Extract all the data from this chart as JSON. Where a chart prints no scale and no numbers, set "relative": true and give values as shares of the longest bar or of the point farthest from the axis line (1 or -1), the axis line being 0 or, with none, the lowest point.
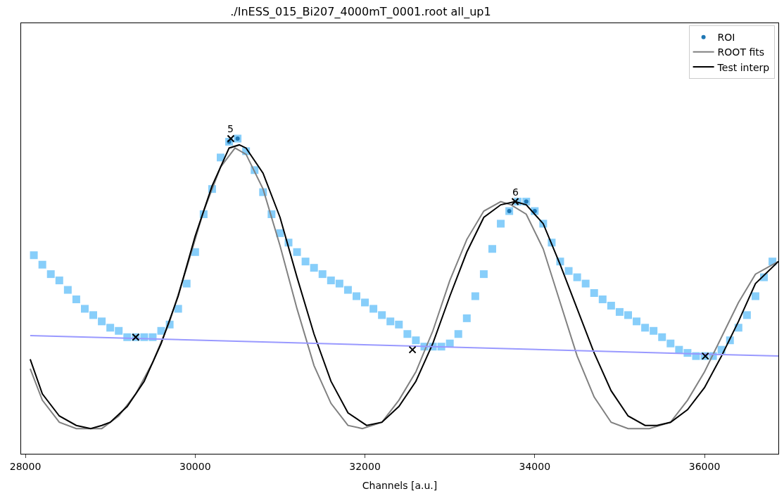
{
  "chart_data": {
    "type": "scatter",
    "title": "./InESS_015_Bi207_4000mT_0001.root all_up1",
    "xlabel": "Channels [a.u.]",
    "relative": true,
    "xlim": [
      27950,
      36870
    ],
    "xticks": [
      28000,
      30000,
      32000,
      34000,
      36000
    ],
    "legend": "top right",
    "tick_labels": "x",
    "series": [
      {
        "marker": "square",
        "color": "#87cefa",
        "x": [
          28100,
          28200,
          28300,
          28400,
          28500,
          28600,
          28700,
          28800,
          28900,
          29000,
          29100,
          29200,
          29300,
          29400,
          29500,
          29600,
          29700,
          29800,
          29900,
          30000,
          30100,
          30200,
          30300,
          30400,
          30500,
          30600,
          30700,
          30800,
          30900,
          31000,
          31100,
          31200,
          31300,
          31400,
          31500,
          31600,
          31700,
          31800,
          31900,
          32000,
          32100,
          32200,
          32300,
          32400,
          32500,
          32600,
          32700,
          32800,
          32900,
          33000,
          33100,
          33200,
          33300,
          33400,
          33500,
          33600,
          33700,
          33800,
          33900,
          34000,
          34100,
          34200,
          34300,
          34400,
          34500,
          34600,
          34700,
          34800,
          34900,
          35000,
          35100,
          35200,
          35300,
          35400,
          35500,
          35600,
          35700,
          35800,
          35900,
          36000,
          36100,
          36200,
          36300,
          36400,
          36500,
          36600,
          36700,
          36800
        ],
        "values": [
          0.63,
          0.6,
          0.57,
          0.55,
          0.52,
          0.49,
          0.46,
          0.44,
          0.42,
          0.4,
          0.39,
          0.37,
          0.37,
          0.37,
          0.37,
          0.39,
          0.41,
          0.46,
          0.54,
          0.64,
          0.76,
          0.84,
          0.94,
          0.99,
          1.0,
          0.96,
          0.9,
          0.83,
          0.76,
          0.7,
          0.67,
          0.64,
          0.61,
          0.59,
          0.57,
          0.55,
          0.54,
          0.52,
          0.5,
          0.48,
          0.46,
          0.44,
          0.42,
          0.41,
          0.38,
          0.36,
          0.34,
          0.34,
          0.34,
          0.35,
          0.38,
          0.43,
          0.5,
          0.57,
          0.65,
          0.73,
          0.77,
          0.8,
          0.8,
          0.77,
          0.73,
          0.67,
          0.61,
          0.58,
          0.56,
          0.54,
          0.51,
          0.49,
          0.47,
          0.45,
          0.44,
          0.42,
          0.4,
          0.39,
          0.37,
          0.35,
          0.33,
          0.32,
          0.31,
          0.31,
          0.31,
          0.33,
          0.36,
          0.4,
          0.44,
          0.5,
          0.56,
          0.61
        ]
      },
      {
        "name": "ROI",
        "marker": "circle",
        "color": "#1f77b4",
        "x": [
          30400,
          30500,
          33700,
          33900,
          34000
        ],
        "values": [
          0.99,
          1.0,
          0.77,
          0.8,
          0.77
        ]
      },
      {
        "type": "line",
        "name": "ROOT fits",
        "color": "#808080",
        "x": [
          28057,
          28200,
          28400,
          28600,
          28720,
          28900,
          29100,
          29300,
          29500,
          29700,
          29900,
          30100,
          30300,
          30470,
          30600,
          30800,
          31000,
          31200,
          31400,
          31600,
          31800,
          31970,
          32200,
          32400,
          32600,
          32800,
          33000,
          33200,
          33400,
          33600,
          33720,
          33900,
          34100,
          34300,
          34500,
          34700,
          34900,
          35100,
          35350,
          35600,
          35800,
          36000,
          36200,
          36400,
          36600,
          36870
        ],
        "values": [
          0.27,
          0.17,
          0.1,
          0.08,
          0.08,
          0.08,
          0.12,
          0.19,
          0.29,
          0.42,
          0.59,
          0.77,
          0.91,
          0.97,
          0.95,
          0.84,
          0.66,
          0.46,
          0.28,
          0.16,
          0.09,
          0.08,
          0.1,
          0.17,
          0.26,
          0.39,
          0.55,
          0.68,
          0.77,
          0.8,
          0.79,
          0.76,
          0.65,
          0.48,
          0.31,
          0.18,
          0.1,
          0.08,
          0.08,
          0.1,
          0.17,
          0.26,
          0.37,
          0.48,
          0.57,
          0.61
        ]
      },
      {
        "type": "line",
        "name": "Test interp",
        "color": "#000000",
        "x": [
          28057,
          28200,
          28400,
          28600,
          28770,
          28900,
          29000,
          29200,
          29400,
          29600,
          29800,
          30000,
          30200,
          30400,
          30520,
          30600,
          30800,
          31000,
          31200,
          31400,
          31600,
          31800,
          32020,
          32200,
          32400,
          32600,
          32800,
          33000,
          33200,
          33400,
          33600,
          33770,
          33900,
          34100,
          34300,
          34500,
          34700,
          34900,
          35100,
          35300,
          35440,
          35600,
          35800,
          36000,
          36200,
          36400,
          36600,
          36870
        ],
        "values": [
          0.3,
          0.19,
          0.12,
          0.09,
          0.08,
          0.09,
          0.1,
          0.15,
          0.23,
          0.35,
          0.5,
          0.69,
          0.85,
          0.97,
          0.98,
          0.97,
          0.89,
          0.75,
          0.56,
          0.38,
          0.23,
          0.13,
          0.09,
          0.1,
          0.15,
          0.23,
          0.35,
          0.5,
          0.64,
          0.75,
          0.79,
          0.8,
          0.79,
          0.73,
          0.6,
          0.46,
          0.32,
          0.2,
          0.12,
          0.09,
          0.09,
          0.1,
          0.14,
          0.21,
          0.31,
          0.42,
          0.54,
          0.61
        ]
      },
      {
        "type": "line",
        "color": "#9999ff",
        "x": [
          28057,
          36870
        ],
        "values": [
          0.375,
          0.31
        ]
      },
      {
        "marker": "cross",
        "color": "#000000",
        "x": [
          29300,
          30420,
          32560,
          33770,
          36010
        ],
        "values": [
          0.37,
          1.0,
          0.33,
          0.8,
          0.31
        ]
      }
    ],
    "annotations": [
      {
        "text": "5",
        "x": 30420,
        "y": 1.0
      },
      {
        "text": "6",
        "x": 33770,
        "y": 0.8
      }
    ]
  }
}
